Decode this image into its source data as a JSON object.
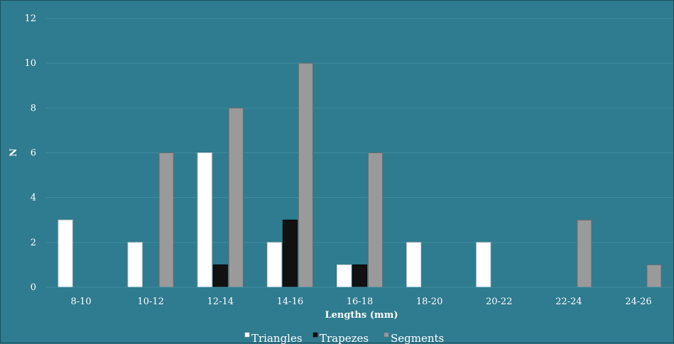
{
  "chart_data": {
    "type": "bar",
    "xlabel": "Lengths (mm)",
    "ylabel": "N",
    "ylim": [
      0,
      12
    ],
    "yticks": [
      0,
      2,
      4,
      6,
      8,
      10,
      12
    ],
    "grid": true,
    "legend_position": "bottom",
    "categories": [
      "8-10",
      "10-12",
      "12-14",
      "14-16",
      "16-18",
      "18-20",
      "20-22",
      "22-24",
      "24-26"
    ],
    "series": [
      {
        "name": "Triangles",
        "color": "#ffffff",
        "values": [
          3,
          2,
          6,
          2,
          1,
          2,
          2,
          0,
          0
        ]
      },
      {
        "name": "Trapezes",
        "color": "#111111",
        "values": [
          0,
          0,
          1,
          3,
          1,
          0,
          0,
          0,
          0
        ]
      },
      {
        "name": "Segments",
        "color": "#9a9a9a",
        "values": [
          0,
          6,
          8,
          10,
          6,
          0,
          0,
          3,
          1
        ]
      }
    ]
  }
}
